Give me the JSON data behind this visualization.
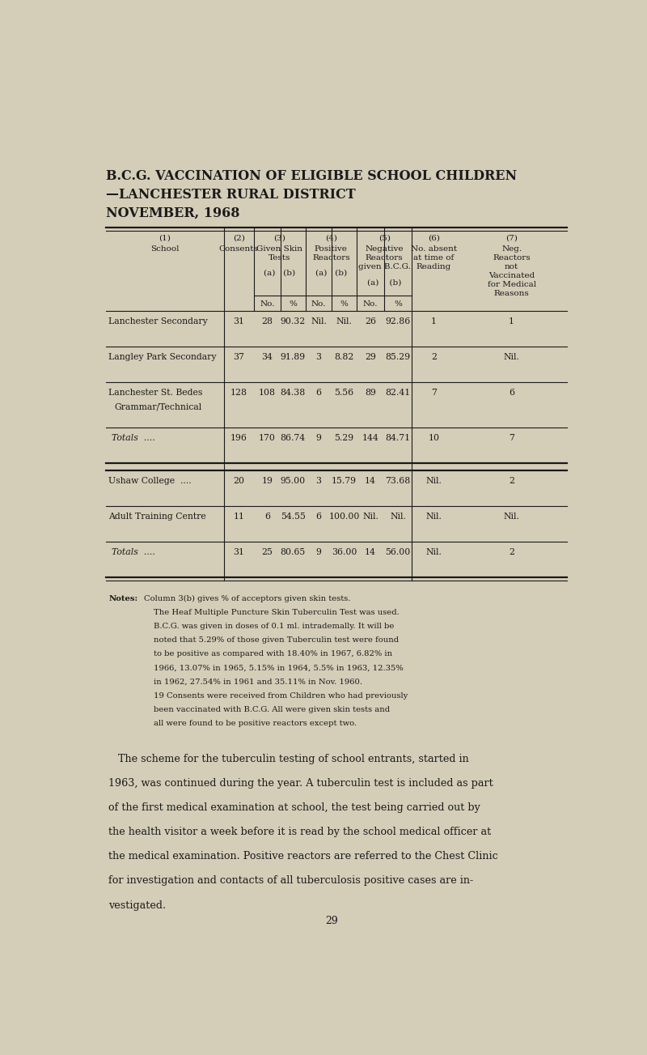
{
  "title_line1": "B.C.G. VACCINATION OF ELIGIBLE SCHOOL CHILDREN",
  "title_line2": "—LANCHESTER RURAL DISTRICT",
  "title_line3": "NOVEMBER, 1968",
  "bg_color": "#d4cdb8",
  "text_color": "#1a1a1a",
  "rows_group1": [
    [
      "Lanchester Secondary",
      "31",
      "28",
      "90.32",
      "Nil.",
      "Nil.",
      "26",
      "92.86",
      "1",
      "1"
    ],
    [
      "Langley Park Secondary",
      "37",
      "34",
      "91.89",
      "3",
      "8.82",
      "29",
      "85.29",
      "2",
      "Nil."
    ],
    [
      "Lanchester St. Bedes\nGrammar/Technical",
      "128",
      "108",
      "84.38",
      "6",
      "5.56",
      "89",
      "82.41",
      "7",
      "6"
    ]
  ],
  "totals_row1": [
    "Totals  ....",
    "196",
    "170",
    "86.74",
    "9",
    "5.29",
    "144",
    "84.71",
    "10",
    "7"
  ],
  "rows_group2": [
    [
      "Ushaw College  ....",
      "20",
      "19",
      "95.00",
      "3",
      "15.79",
      "14",
      "73.68",
      "Nil.",
      "2"
    ],
    [
      "Adult Training Centre",
      "11",
      "6",
      "54.55",
      "6",
      "100.00",
      "Nil.",
      "Nil.",
      "Nil.",
      "Nil."
    ]
  ],
  "totals_row2": [
    "Totals  ....",
    "31",
    "25",
    "80.65",
    "9",
    "36.00",
    "14",
    "56.00",
    "Nil.",
    "2"
  ],
  "notes_label": "Notes:",
  "notes_lines": [
    "Column 3(b) gives % of acceptors given skin tests.",
    "The Heaf Multiple Puncture Skin Tuberculin Test was used.",
    "B.C.G. was given in doses of 0.1 ml. intrademally. It will be",
    "noted that 5.29% of those given Tuberculin test were found",
    "to be positive as compared with 18.40% in 1967, 6.82% in",
    "1966, 13.07% in 1965, 5.15% in 1964, 5.5% in 1963, 12.35%",
    "in 1962, 27.54% in 1961 and 35.11% in Nov. 1960.",
    "19 Consents were received from Children who had previously",
    "been vaccinated with B.C.G. All were given skin tests and",
    "all were found to be positive reactors except two."
  ],
  "body_text": "The scheme for the tuberculin testing of school entrants, started in\n1963, was continued during the year. A tuberculin test is included as part\nof the first medical examination at school, the test being carried out by\nthe health visitor a week before it is read by the school medical officer at\nthe medical examination. Positive reactors are referred to the Chest Clinic\nfor investigation and contacts of all tuberculosis positive cases are in-\nvestigated.",
  "page_number": "29"
}
